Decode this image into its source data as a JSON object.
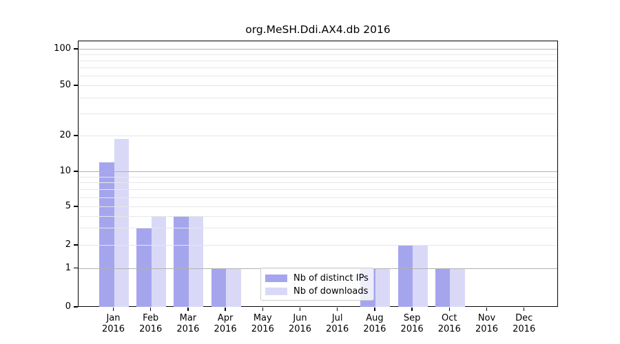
{
  "title": "org.MeSH.Ddi.AX4.db 2016",
  "chart_data": {
    "type": "bar",
    "title": "org.MeSH.Ddi.AX4.db 2016",
    "categories": [
      "Jan",
      "Feb",
      "Mar",
      "Apr",
      "May",
      "Jun",
      "Jul",
      "Aug",
      "Sep",
      "Oct",
      "Nov",
      "Dec"
    ],
    "category_year": "2016",
    "series": [
      {
        "name": "Nb of distinct IPs",
        "color": "#a5a5ee",
        "values": [
          12,
          3,
          4,
          1,
          0,
          0,
          0,
          1,
          2,
          1,
          0,
          0
        ]
      },
      {
        "name": "Nb of downloads",
        "color": "#d9d9f7",
        "values": [
          19,
          4,
          4,
          1,
          0,
          0,
          0,
          1,
          2,
          1,
          0,
          0
        ]
      }
    ],
    "xlabel": "",
    "ylabel": "",
    "yscale": "symlog",
    "ylim": [
      0,
      100
    ],
    "yticks": [
      0,
      1,
      2,
      5,
      10,
      20,
      50,
      100
    ],
    "grid": "horizontal major and minor gridlines, drawn above bars",
    "legend_position": "inside lower-center-left",
    "frame": "full box spines"
  }
}
